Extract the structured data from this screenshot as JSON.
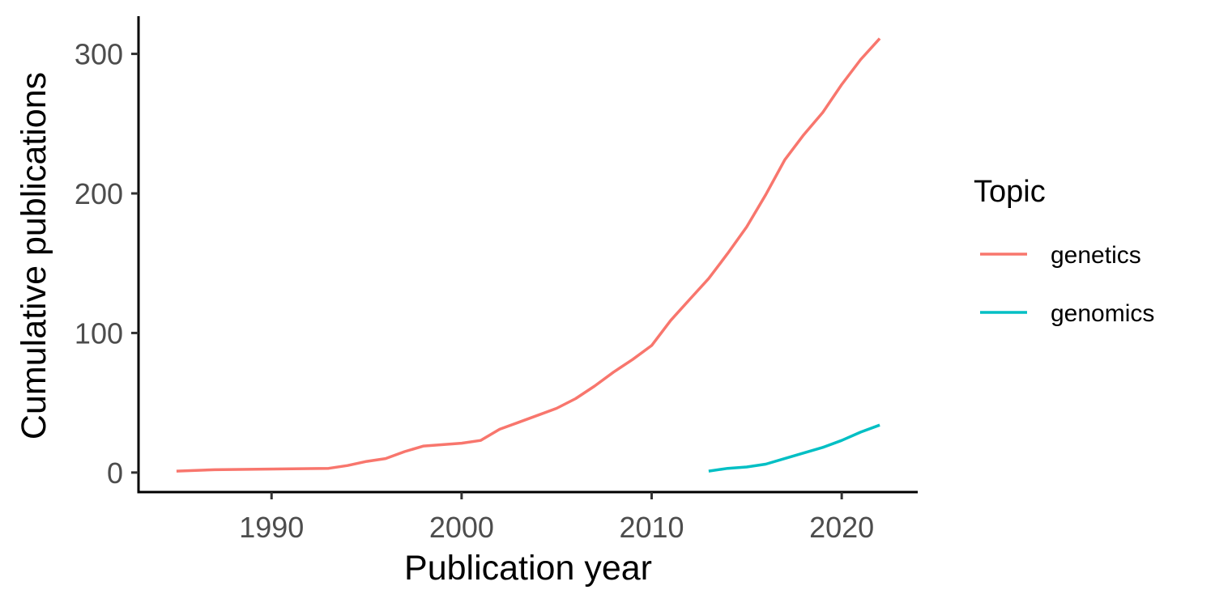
{
  "chart_data": {
    "type": "line",
    "title": "",
    "xlabel": "Publication year",
    "ylabel": "Cumulative publications",
    "xlim": [
      1983,
      2024
    ],
    "ylim": [
      -14,
      327
    ],
    "x_ticks": [
      1990,
      2000,
      2010,
      2020
    ],
    "y_ticks": [
      0,
      100,
      200,
      300
    ],
    "grid": false,
    "legend": {
      "title": "Topic",
      "placement": "right"
    },
    "series": [
      {
        "name": "genetics",
        "color": "#F8766D",
        "points": [
          [
            1985,
            1
          ],
          [
            1987,
            2
          ],
          [
            1993,
            3
          ],
          [
            1994,
            5
          ],
          [
            1995,
            8
          ],
          [
            1996,
            10
          ],
          [
            1997,
            15
          ],
          [
            1998,
            19
          ],
          [
            1999,
            20
          ],
          [
            2000,
            21
          ],
          [
            2001,
            23
          ],
          [
            2002,
            31
          ],
          [
            2003,
            36
          ],
          [
            2004,
            41
          ],
          [
            2005,
            46
          ],
          [
            2006,
            53
          ],
          [
            2007,
            62
          ],
          [
            2008,
            72
          ],
          [
            2009,
            81
          ],
          [
            2010,
            91
          ],
          [
            2011,
            109
          ],
          [
            2012,
            124
          ],
          [
            2013,
            139
          ],
          [
            2014,
            157
          ],
          [
            2015,
            176
          ],
          [
            2016,
            199
          ],
          [
            2017,
            224
          ],
          [
            2018,
            242
          ],
          [
            2019,
            258
          ],
          [
            2020,
            278
          ],
          [
            2021,
            296
          ],
          [
            2022,
            311
          ]
        ]
      },
      {
        "name": "genomics",
        "color": "#00BFC4",
        "points": [
          [
            2013,
            1
          ],
          [
            2014,
            3
          ],
          [
            2015,
            4
          ],
          [
            2016,
            6
          ],
          [
            2017,
            10
          ],
          [
            2018,
            14
          ],
          [
            2019,
            18
          ],
          [
            2020,
            23
          ],
          [
            2021,
            29
          ],
          [
            2022,
            34
          ]
        ]
      }
    ]
  }
}
